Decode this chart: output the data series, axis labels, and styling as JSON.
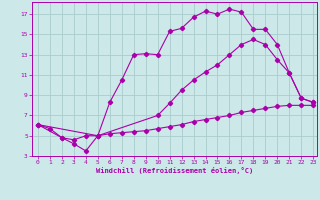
{
  "xlabel": "Windchill (Refroidissement éolien,°C)",
  "bg_color": "#cce8e8",
  "line_color": "#aa00aa",
  "grid_color": "#aacccc",
  "xlim": [
    -0.5,
    23.3
  ],
  "ylim": [
    3.0,
    18.2
  ],
  "xticks": [
    0,
    1,
    2,
    3,
    4,
    5,
    6,
    7,
    8,
    9,
    10,
    11,
    12,
    13,
    14,
    15,
    16,
    17,
    18,
    19,
    20,
    21,
    22,
    23
  ],
  "yticks": [
    3,
    5,
    7,
    9,
    11,
    13,
    15,
    17
  ],
  "line1_x": [
    0,
    1,
    2,
    3,
    4,
    5,
    6,
    7,
    8,
    9,
    10,
    11,
    12,
    13,
    14,
    15,
    16,
    17,
    18,
    19,
    20,
    21,
    22,
    23
  ],
  "line1_y": [
    6.1,
    5.7,
    4.8,
    4.6,
    5.0,
    5.0,
    8.3,
    10.5,
    13.0,
    13.1,
    13.0,
    15.3,
    15.6,
    16.7,
    17.3,
    17.0,
    17.5,
    17.2,
    15.5,
    15.5,
    14.0,
    11.2,
    8.7,
    8.3
  ],
  "line2_x": [
    0,
    2,
    3,
    4,
    5,
    6,
    7,
    8,
    9,
    10,
    11,
    12,
    13,
    14,
    15,
    16,
    17,
    18,
    19,
    20,
    21,
    22,
    23
  ],
  "line2_y": [
    6.1,
    4.8,
    4.2,
    3.5,
    5.0,
    5.2,
    5.3,
    5.4,
    5.5,
    5.7,
    5.9,
    6.1,
    6.4,
    6.6,
    6.8,
    7.0,
    7.3,
    7.5,
    7.7,
    7.9,
    8.0,
    8.0,
    8.0
  ],
  "line3_x": [
    0,
    5,
    10,
    11,
    12,
    13,
    14,
    15,
    16,
    17,
    18,
    19,
    20,
    21,
    22,
    23
  ],
  "line3_y": [
    6.1,
    5.0,
    7.0,
    8.2,
    9.5,
    10.5,
    11.3,
    12.0,
    13.0,
    14.0,
    14.5,
    14.0,
    12.5,
    11.2,
    8.7,
    8.3
  ]
}
